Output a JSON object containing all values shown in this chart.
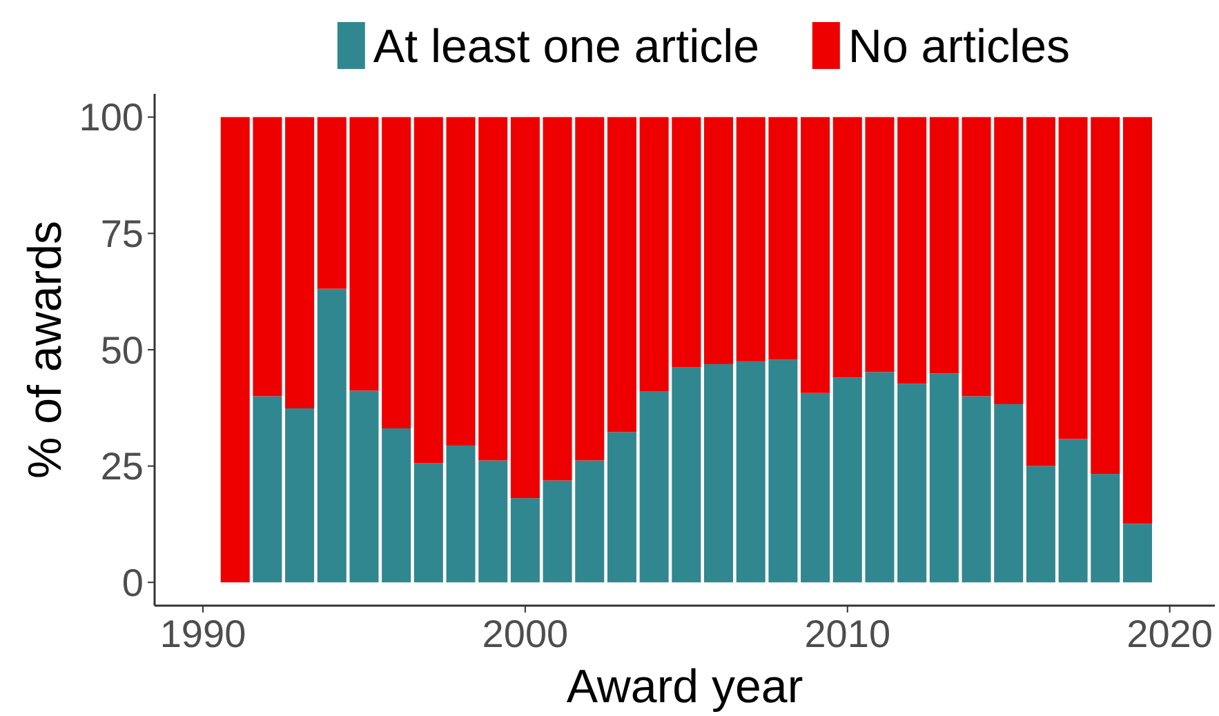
{
  "chart_data": {
    "type": "bar",
    "stacked": true,
    "xlabel": "Award year",
    "ylabel": "% of awards",
    "legend": "top",
    "grid": false,
    "x": [
      1991,
      1992,
      1993,
      1994,
      1995,
      1996,
      1997,
      1998,
      1999,
      2000,
      2001,
      2002,
      2003,
      2004,
      2005,
      2006,
      2007,
      2008,
      2009,
      2010,
      2011,
      2012,
      2013,
      2014,
      2015,
      2016,
      2017,
      2018,
      2019
    ],
    "xlim": [
      1988.5,
      2021.4
    ],
    "xticks": [
      1990,
      2000,
      2010,
      2020
    ],
    "ylim": [
      -5,
      105
    ],
    "yticks": [
      0,
      25,
      50,
      75,
      100
    ],
    "series": [
      {
        "name": "At least one article",
        "color": "#31878f",
        "values": [
          0,
          40.0,
          37.4,
          63.1,
          41.2,
          33.1,
          25.6,
          29.4,
          26.2,
          18.1,
          21.9,
          26.2,
          32.3,
          41.0,
          46.2,
          46.9,
          47.5,
          47.9,
          40.7,
          44.0,
          45.2,
          42.7,
          44.9,
          40.0,
          38.3,
          25.0,
          30.8,
          23.3,
          12.6
        ]
      },
      {
        "name": "No articles",
        "color": "#ee0000",
        "values": [
          100,
          60.0,
          62.6,
          36.9,
          58.8,
          66.9,
          74.4,
          70.6,
          73.8,
          81.9,
          78.1,
          73.8,
          67.7,
          59.0,
          53.8,
          53.1,
          52.5,
          52.1,
          59.3,
          56.0,
          54.8,
          57.3,
          55.1,
          60.0,
          61.7,
          75.0,
          69.2,
          76.7,
          87.4
        ]
      }
    ]
  }
}
